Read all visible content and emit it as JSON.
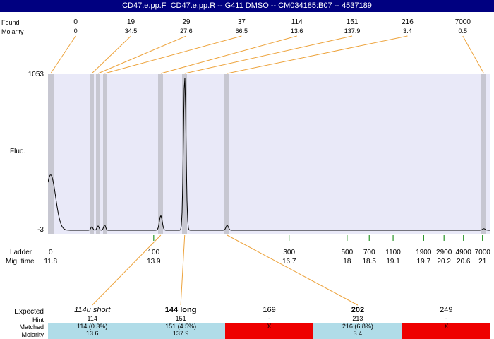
{
  "title_bar": {
    "title": "CD47.e.pp.F  CD47.e.pp.R -- G411 DMSO -- CM034185:B07 -- 4537189"
  },
  "colors": {
    "title_bg": "#000080",
    "plot_bg": "#e9e9f8",
    "marker_band": "#c7c7d1",
    "connector": "#eda33c",
    "tick": "#008000",
    "matched_bg": "#b0dce8",
    "unmatched_bg": "#ee0000",
    "trace": "#000000"
  },
  "axis": {
    "found_row_label": "Found",
    "molarity_row_label": "Molarity",
    "y_max_label": "1053",
    "y_min_label": "-3",
    "y_axis_label": "Fluo."
  },
  "ladder_labels": {
    "row1": "Ladder",
    "row2": "Mig. time"
  },
  "chart_data": {
    "type": "line",
    "ylabel": "Fluo.",
    "ylim": [
      -3,
      1053
    ],
    "found_sizes": [
      "0",
      "19",
      "29",
      "37",
      "114",
      "151",
      "216",
      "7000"
    ],
    "found_molarities": [
      "0",
      "34.5",
      "27.6",
      "66.5",
      "13.6",
      "137.9",
      "3.4",
      "0.5"
    ],
    "peaks": [
      {
        "size": "0",
        "molarity": "0",
        "pos": 0.006,
        "height": 0.36,
        "sigma": 7,
        "band_w": 9
      },
      {
        "size": "19",
        "molarity": "34.5",
        "pos": 0.099,
        "height": 0.022,
        "sigma": 1.5,
        "band_w": 5
      },
      {
        "size": "29",
        "molarity": "27.6",
        "pos": 0.113,
        "height": 0.028,
        "sigma": 1.5,
        "band_w": 5
      },
      {
        "size": "37",
        "molarity": "66.5",
        "pos": 0.128,
        "height": 0.034,
        "sigma": 1.5,
        "band_w": 5
      },
      {
        "size": "114",
        "molarity": "13.6",
        "pos": 0.255,
        "height": 0.095,
        "sigma": 2,
        "band_w": 7
      },
      {
        "size": "151",
        "molarity": "137.9",
        "pos": 0.309,
        "height": 1.0,
        "sigma": 1.8,
        "band_w": 7
      },
      {
        "size": "216",
        "molarity": "3.4",
        "pos": 0.405,
        "height": 0.032,
        "sigma": 1.8,
        "band_w": 7
      },
      {
        "size": "7000",
        "molarity": "0.5",
        "pos": 0.985,
        "height": 0.01,
        "sigma": 2,
        "band_w": 7
      }
    ],
    "ladder": [
      {
        "size": "0",
        "mig_time": "11.8",
        "pos": 0.006
      },
      {
        "size": "100",
        "mig_time": "13.9",
        "pos": 0.239
      },
      {
        "size": "300",
        "mig_time": "16.7",
        "pos": 0.545
      },
      {
        "size": "500",
        "mig_time": "18",
        "pos": 0.676
      },
      {
        "size": "700",
        "mig_time": "18.5",
        "pos": 0.726
      },
      {
        "size": "1100",
        "mig_time": "19.1",
        "pos": 0.78
      },
      {
        "size": "1900",
        "mig_time": "19.7",
        "pos": 0.849
      },
      {
        "size": "2900",
        "mig_time": "20.2",
        "pos": 0.895
      },
      {
        "size": "4900",
        "mig_time": "20.6",
        "pos": 0.939
      },
      {
        "size": "7000",
        "mig_time": "21",
        "pos": 0.982
      }
    ]
  },
  "results_table": {
    "row_labels": [
      "Expected",
      "Hint",
      "Matched",
      "Molarity"
    ],
    "columns": [
      {
        "expected": "114u short",
        "style": "italic",
        "hint": "114",
        "matched": "114 (0.3%)",
        "molarity": "13.6",
        "status": "matched",
        "peak_pos": 0.255
      },
      {
        "expected": "144 long",
        "style": "bold",
        "hint": "151",
        "matched": "151 (4.5%)",
        "molarity": "137.9",
        "status": "matched",
        "peak_pos": 0.309
      },
      {
        "expected": "169",
        "style": "normal",
        "hint": "-",
        "matched": "X",
        "molarity": "",
        "status": "unmatched"
      },
      {
        "expected": "202",
        "style": "bold",
        "hint": "213",
        "matched": "216 (6.8%)",
        "molarity": "3.4",
        "status": "matched",
        "peak_pos": 0.405
      },
      {
        "expected": "249",
        "style": "normal",
        "hint": "-",
        "matched": "X",
        "molarity": "",
        "status": "unmatched"
      }
    ]
  }
}
